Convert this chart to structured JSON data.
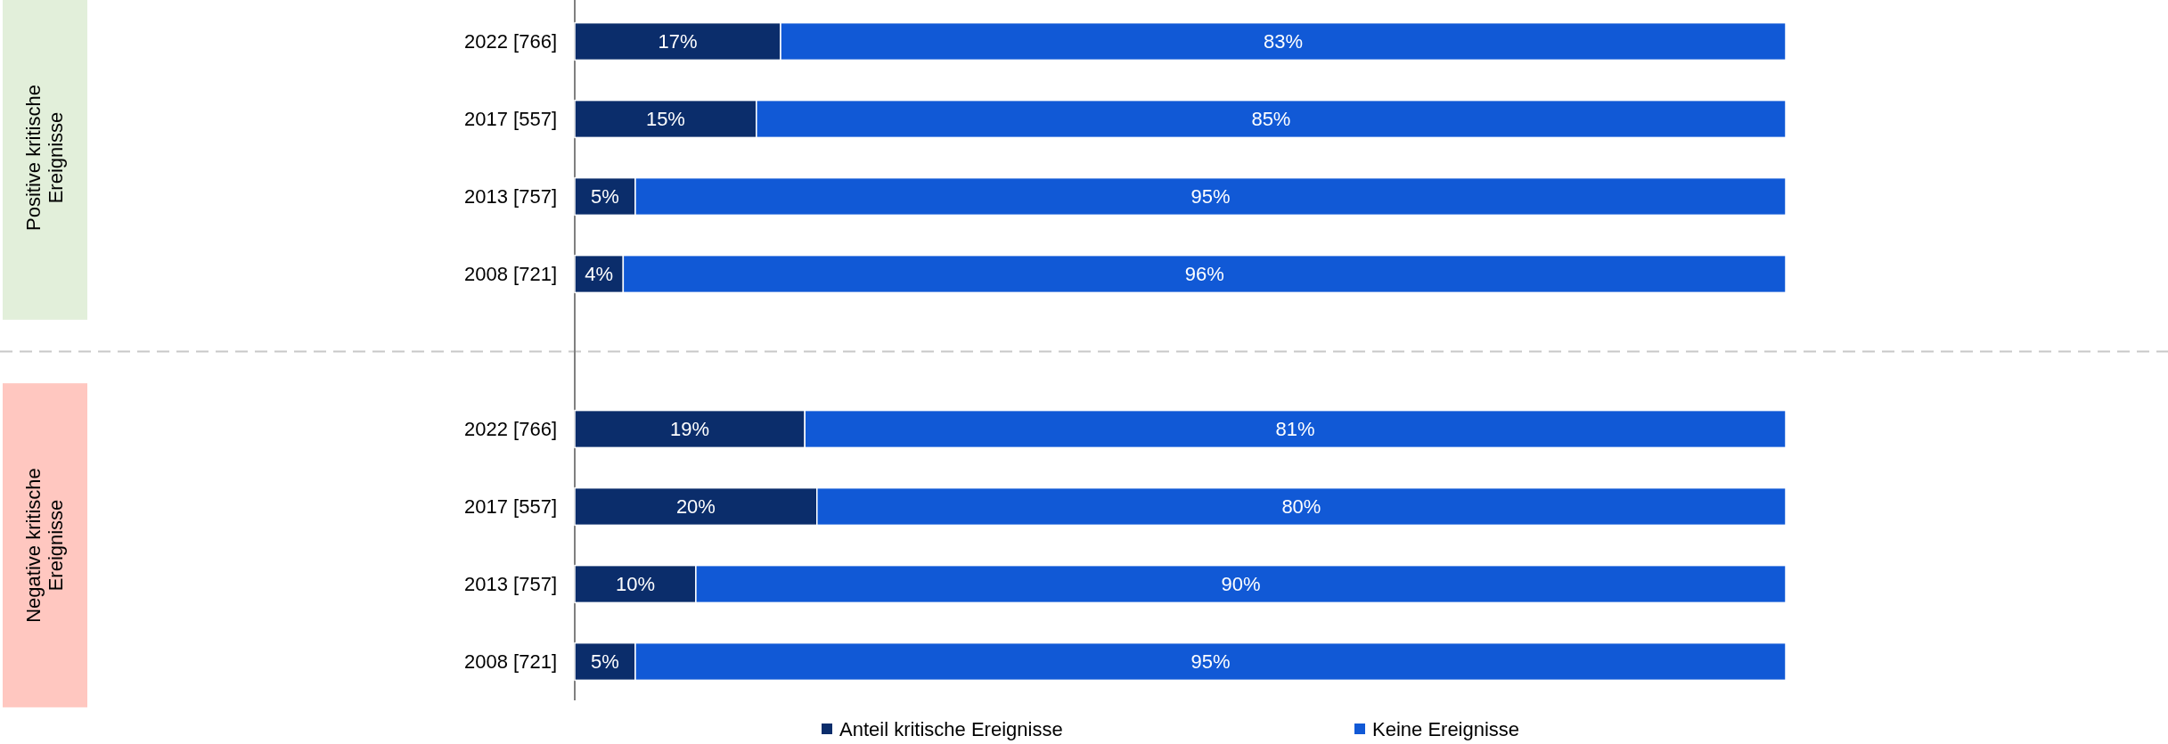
{
  "chart_data": {
    "type": "bar",
    "orientation": "horizontal",
    "stacked": true,
    "categories": [
      "2022 [766]",
      "2017 [557]",
      "2013 [757]",
      "2008 [721]",
      null,
      "2022 [766]",
      "2017 [557]",
      "2013 [757]",
      "2008 [721]"
    ],
    "series": [
      {
        "name": "Anteil kritische Ereignisse",
        "color": "#0b2d6b",
        "values": [
          17,
          15,
          5,
          4,
          null,
          19,
          20,
          10,
          5
        ],
        "value_labels": [
          "17%",
          "15%",
          "5%",
          "4%",
          null,
          "19%",
          "20%",
          "10%",
          "5%"
        ]
      },
      {
        "name": "Keine Ereignisse",
        "color": "#1159d6",
        "values": [
          83,
          85,
          95,
          96,
          null,
          81,
          80,
          90,
          95
        ],
        "value_labels": [
          "83%",
          "85%",
          "95%",
          "96%",
          null,
          "81%",
          "80%",
          "90%",
          "95%"
        ]
      }
    ],
    "annotations": [
      "Positive kritische Ereignisse",
      "Negative kritische Ereignisse"
    ],
    "xlim": [
      0,
      100
    ],
    "tick_labels": "y",
    "legend": "bottom"
  }
}
